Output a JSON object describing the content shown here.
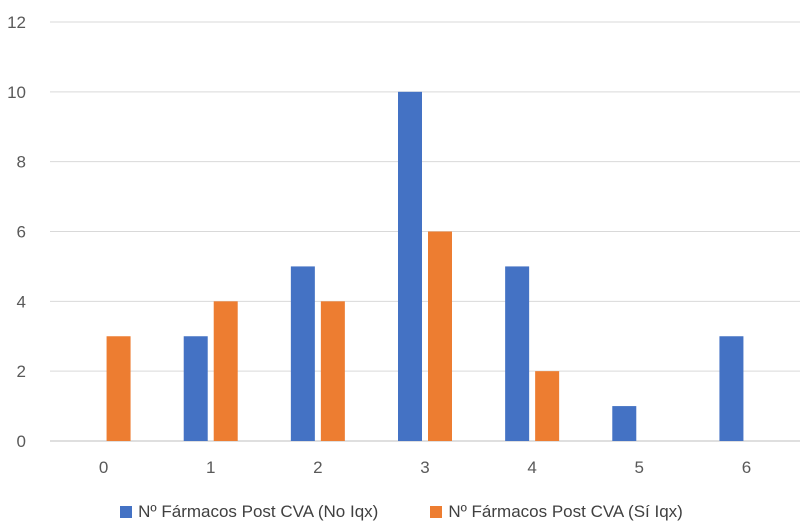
{
  "chart_data": {
    "type": "bar",
    "title": "",
    "xlabel": "",
    "ylabel": "",
    "categories": [
      "0",
      "1",
      "2",
      "3",
      "4",
      "5",
      "6"
    ],
    "series": [
      {
        "name": "Nº Fármacos Post  CVA (No Iqx)",
        "color": "#4472C4",
        "values": [
          0,
          3,
          5,
          10,
          5,
          1,
          3
        ]
      },
      {
        "name": "Nº Fármacos Post  CVA (Sí Iqx)",
        "color": "#ED7D31",
        "values": [
          3,
          4,
          4,
          6,
          2,
          0,
          0
        ]
      }
    ],
    "ylim": [
      0,
      12
    ],
    "yticks": [
      0,
      2,
      4,
      6,
      8,
      10,
      12
    ],
    "grid": true,
    "legend_position": "bottom"
  }
}
